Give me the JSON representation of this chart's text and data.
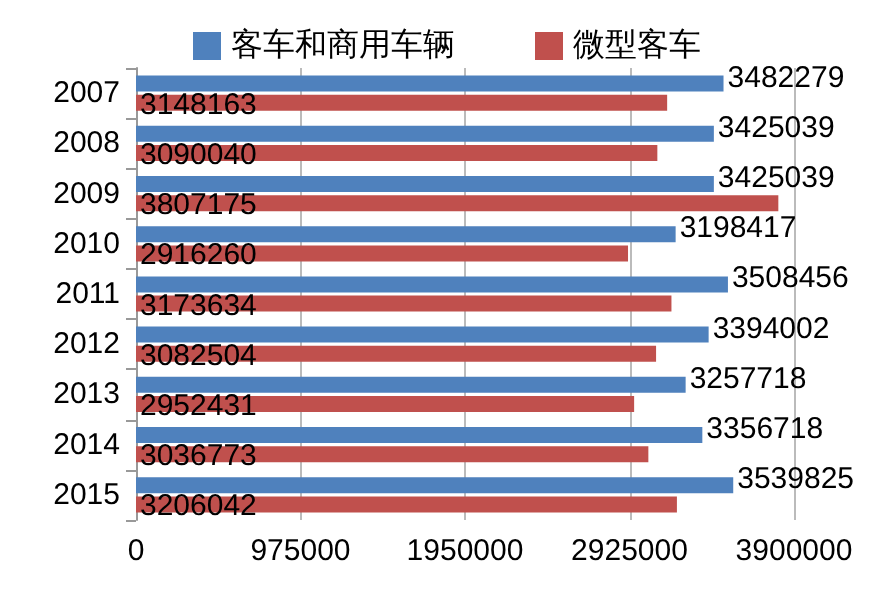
{
  "chart_data": {
    "type": "bar",
    "orientation": "horizontal",
    "categories": [
      "2007",
      "2008",
      "2009",
      "2010",
      "2011",
      "2012",
      "2013",
      "2014",
      "2015"
    ],
    "series": [
      {
        "name": "客车和商用车辆",
        "color": "#4f81bd",
        "values": [
          3482279,
          3425039,
          3425039,
          3198417,
          3508456,
          3394002,
          3257718,
          3356718,
          3539825
        ]
      },
      {
        "name": "微型客车",
        "color": "#c0504d",
        "values": [
          3148163,
          3090040,
          3807175,
          2916260,
          3173634,
          3082504,
          2952431,
          3036773,
          3206042
        ]
      }
    ],
    "xlim": [
      0,
      3900000
    ],
    "xticks": [
      0,
      975000,
      1950000,
      2925000,
      3900000
    ],
    "grid": "x",
    "legend": "top",
    "data_labels": true
  }
}
